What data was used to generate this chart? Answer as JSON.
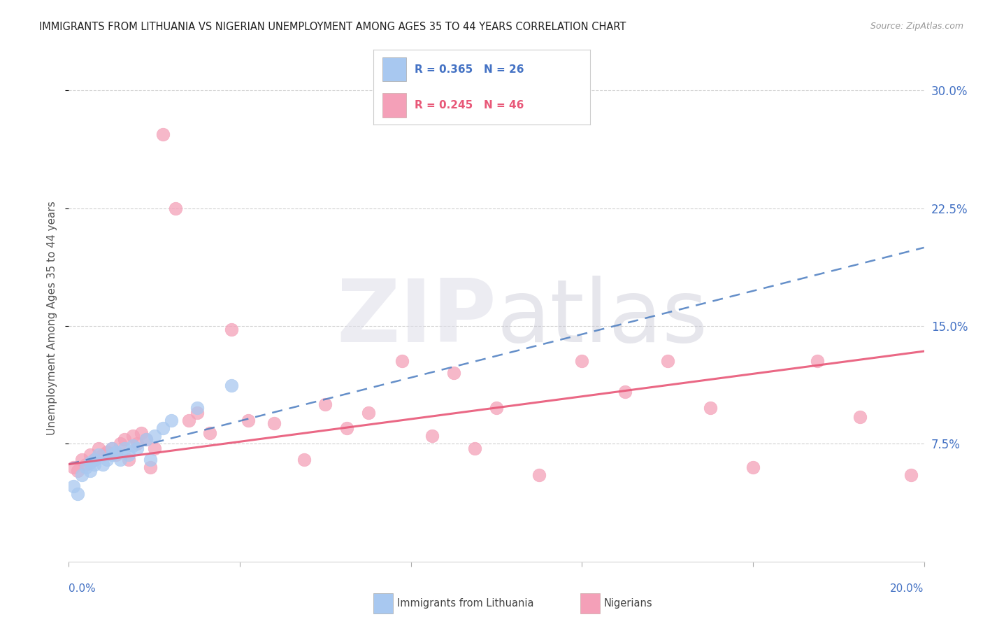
{
  "title": "IMMIGRANTS FROM LITHUANIA VS NIGERIAN UNEMPLOYMENT AMONG AGES 35 TO 44 YEARS CORRELATION CHART",
  "source": "Source: ZipAtlas.com",
  "ylabel": "Unemployment Among Ages 35 to 44 years",
  "xlim": [
    0.0,
    0.2
  ],
  "ylim": [
    0.0,
    0.31
  ],
  "yticks": [
    0.075,
    0.15,
    0.225,
    0.3
  ],
  "ytick_labels": [
    "7.5%",
    "15.0%",
    "22.5%",
    "30.0%"
  ],
  "color_blue": "#A8C8F0",
  "color_pink": "#F4A0B8",
  "color_blue_line": "#4A7CC0",
  "color_pink_line": "#E85878",
  "lith_x": [
    0.001,
    0.002,
    0.003,
    0.004,
    0.005,
    0.005,
    0.006,
    0.006,
    0.007,
    0.008,
    0.009,
    0.01,
    0.01,
    0.011,
    0.012,
    0.013,
    0.014,
    0.015,
    0.016,
    0.018,
    0.019,
    0.02,
    0.022,
    0.024,
    0.03,
    0.038
  ],
  "lith_y": [
    0.048,
    0.043,
    0.055,
    0.06,
    0.058,
    0.063,
    0.065,
    0.062,
    0.068,
    0.062,
    0.065,
    0.068,
    0.072,
    0.07,
    0.065,
    0.072,
    0.068,
    0.074,
    0.072,
    0.078,
    0.065,
    0.08,
    0.085,
    0.09,
    0.098,
    0.112
  ],
  "nig_x": [
    0.001,
    0.002,
    0.003,
    0.004,
    0.005,
    0.006,
    0.007,
    0.008,
    0.009,
    0.01,
    0.011,
    0.012,
    0.013,
    0.014,
    0.015,
    0.016,
    0.017,
    0.018,
    0.019,
    0.02,
    0.022,
    0.025,
    0.028,
    0.03,
    0.033,
    0.038,
    0.042,
    0.048,
    0.055,
    0.06,
    0.065,
    0.07,
    0.078,
    0.085,
    0.09,
    0.095,
    0.1,
    0.11,
    0.12,
    0.13,
    0.14,
    0.15,
    0.16,
    0.175,
    0.185,
    0.197
  ],
  "nig_y": [
    0.06,
    0.058,
    0.065,
    0.062,
    0.068,
    0.065,
    0.072,
    0.068,
    0.07,
    0.072,
    0.068,
    0.075,
    0.078,
    0.065,
    0.08,
    0.075,
    0.082,
    0.078,
    0.06,
    0.072,
    0.272,
    0.225,
    0.09,
    0.095,
    0.082,
    0.148,
    0.09,
    0.088,
    0.065,
    0.1,
    0.085,
    0.095,
    0.128,
    0.08,
    0.12,
    0.072,
    0.098,
    0.055,
    0.128,
    0.108,
    0.128,
    0.098,
    0.06,
    0.128,
    0.092,
    0.055
  ],
  "legend_r1_val": "0.365",
  "legend_n1_val": "26",
  "legend_r2_val": "0.245",
  "legend_n2_val": "46",
  "legend_label1": "Immigrants from Lithuania",
  "legend_label2": "Nigerians"
}
